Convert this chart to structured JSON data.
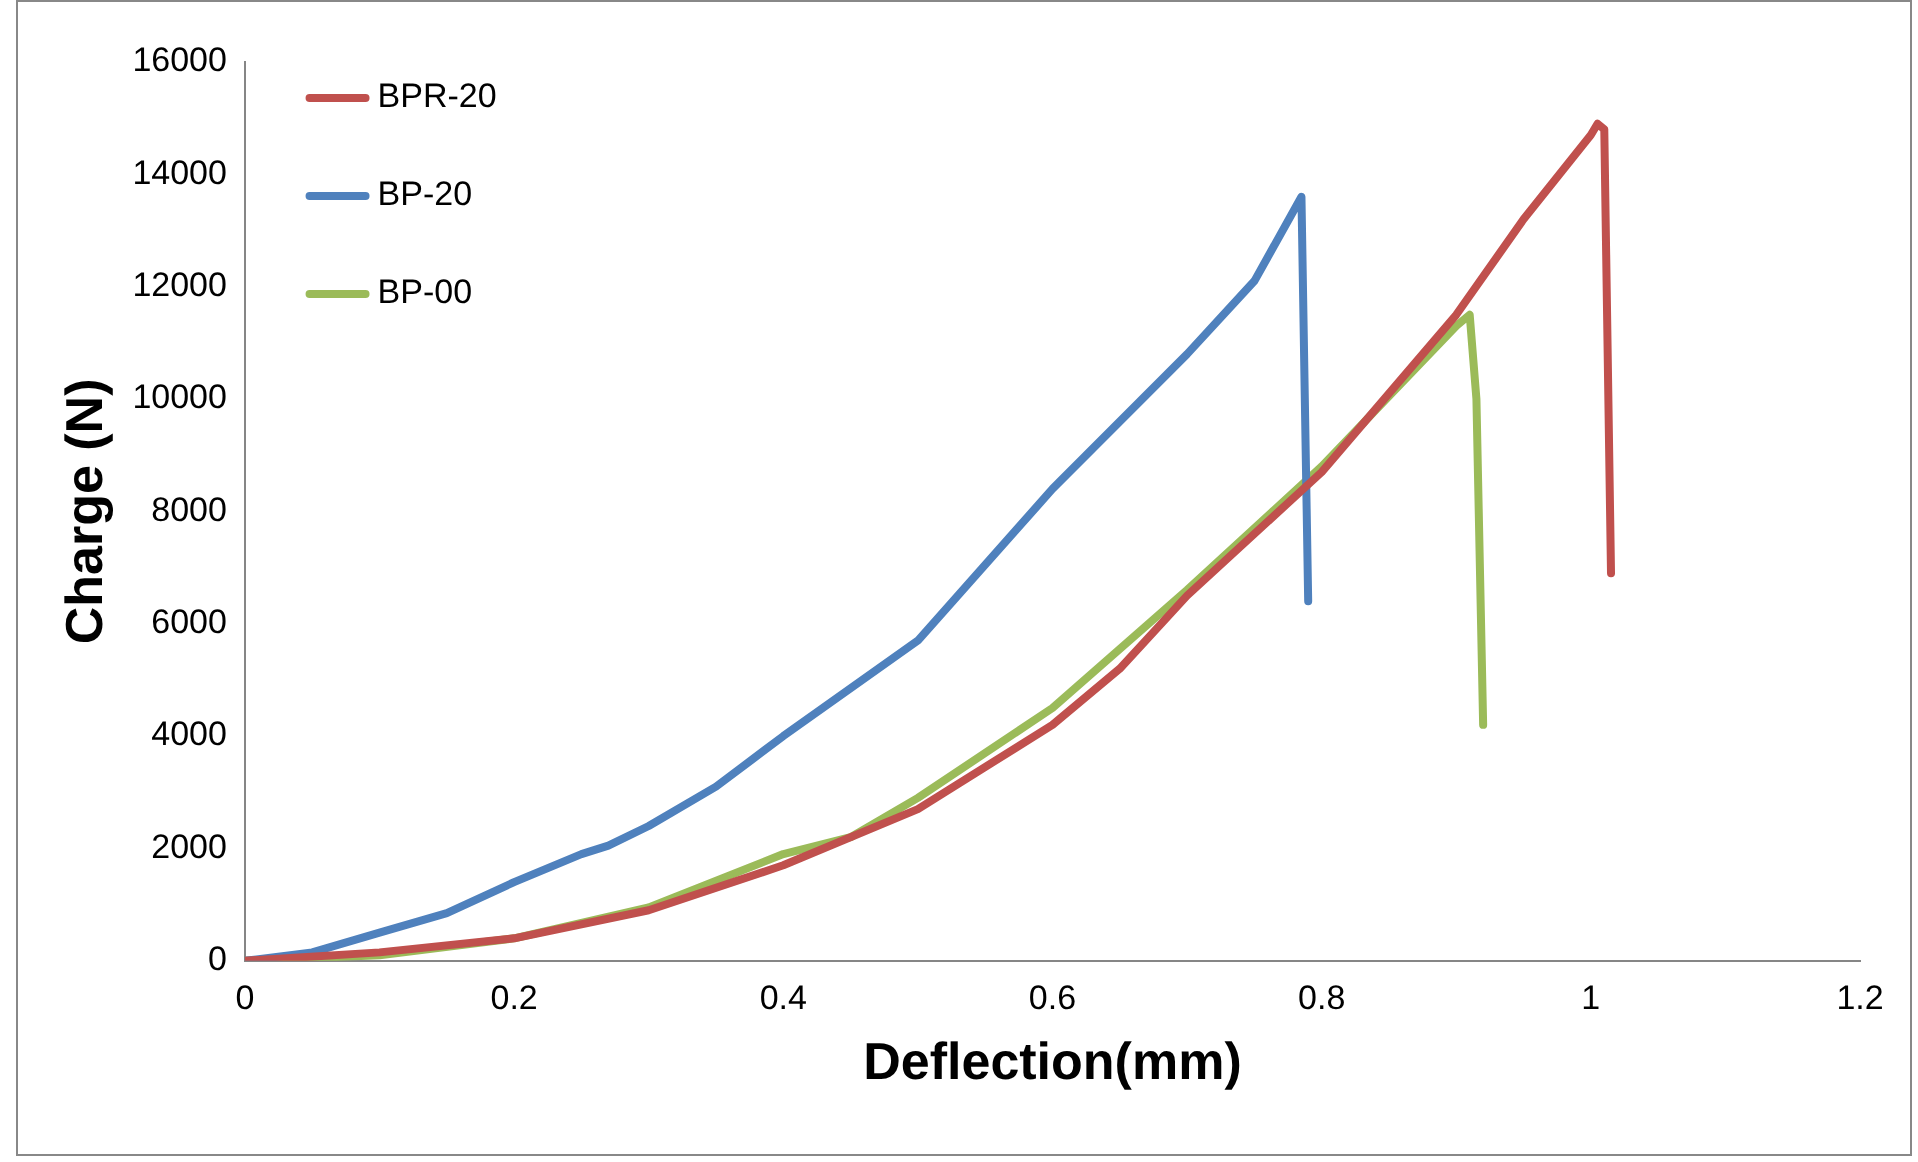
{
  "chart_data": {
    "type": "line",
    "xlabel": "Deflection(mm)",
    "ylabel": "Charge (N)",
    "xlim": [
      0,
      1.2
    ],
    "xticks": [
      0,
      0.2,
      0.4,
      0.6,
      0.8,
      1,
      1.2
    ],
    "ylim": [
      0,
      16000
    ],
    "yticks": [
      0,
      2000,
      4000,
      6000,
      8000,
      10000,
      12000,
      14000,
      16000
    ],
    "grid": false,
    "legend": "top left",
    "marker": "none",
    "line_style": "solid",
    "series": [
      {
        "name": "BPR-20",
        "color": "#c0504d",
        "x": [
          0,
          0.1,
          0.2,
          0.3,
          0.4,
          0.5,
          0.6,
          0.65,
          0.7,
          0.8,
          0.9,
          0.95,
          1.0,
          1.005,
          1.01,
          1.015
        ],
        "values": [
          0,
          150,
          400,
          900,
          1700,
          2700,
          4200,
          5200,
          6500,
          8700,
          11500,
          13200,
          14700,
          14900,
          14800,
          6900
        ]
      },
      {
        "name": "BP-20",
        "color": "#4f81bd",
        "x": [
          0,
          0.05,
          0.1,
          0.15,
          0.2,
          0.25,
          0.27,
          0.3,
          0.35,
          0.4,
          0.5,
          0.6,
          0.7,
          0.75,
          0.785,
          0.79
        ],
        "values": [
          0,
          150,
          500,
          850,
          1400,
          1900,
          2050,
          2400,
          3100,
          4000,
          5700,
          8400,
          10800,
          12100,
          13600,
          6400
        ]
      },
      {
        "name": "BP-00",
        "color": "#9bbb59",
        "x": [
          0,
          0.1,
          0.2,
          0.3,
          0.4,
          0.45,
          0.5,
          0.6,
          0.7,
          0.8,
          0.9,
          0.91,
          0.915,
          0.92
        ],
        "values": [
          0,
          100,
          400,
          950,
          1900,
          2200,
          2900,
          4500,
          6600,
          8800,
          11300,
          11500,
          10000,
          4200
        ]
      }
    ]
  }
}
